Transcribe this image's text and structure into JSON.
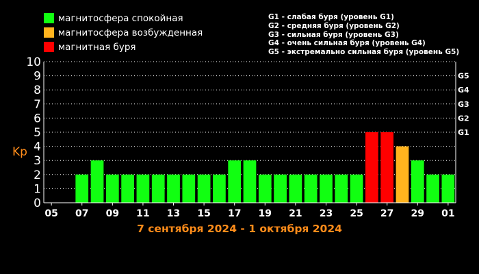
{
  "chart_data": {
    "type": "bar",
    "title": "",
    "subtitle": "7 сентября 2024 - 1 октября 2024",
    "ylabel": "Kp",
    "xlabel": "",
    "ylim": [
      0,
      10
    ],
    "yticks": [
      "0",
      "1",
      "2",
      "3",
      "4",
      "5",
      "6",
      "7",
      "8",
      "9",
      "10"
    ],
    "x_tick_labels": [
      "05",
      "07",
      "09",
      "11",
      "13",
      "15",
      "17",
      "19",
      "21",
      "23",
      "25",
      "27",
      "29",
      "01"
    ],
    "categories": [
      "07",
      "08",
      "09",
      "10",
      "11",
      "12",
      "13",
      "14",
      "15",
      "16",
      "17",
      "18",
      "19",
      "20",
      "21",
      "22",
      "23",
      "24",
      "25",
      "26",
      "27",
      "28",
      "29",
      "30",
      "01"
    ],
    "values": [
      2,
      3,
      2,
      2,
      2,
      2,
      2,
      2,
      2,
      2,
      3,
      3,
      2,
      2,
      2,
      2,
      2,
      2,
      2,
      5,
      5,
      4,
      3,
      2,
      2
    ],
    "bar_status": [
      "quiet",
      "quiet",
      "quiet",
      "quiet",
      "quiet",
      "quiet",
      "quiet",
      "quiet",
      "quiet",
      "quiet",
      "quiet",
      "quiet",
      "quiet",
      "quiet",
      "quiet",
      "quiet",
      "quiet",
      "quiet",
      "quiet",
      "storm",
      "storm",
      "active",
      "quiet",
      "quiet",
      "quiet"
    ],
    "grid": true,
    "legend_position": "top-left",
    "legend": [
      {
        "key": "quiet",
        "label": "магнитосфера спокойная",
        "color": "#11ff11"
      },
      {
        "key": "active",
        "label": "магнитосфера возбужденная",
        "color": "#ffb41e"
      },
      {
        "key": "storm",
        "label": "магнитная буря",
        "color": "#ff0000"
      }
    ],
    "g_levels": [
      {
        "label": "G1",
        "kp": 5
      },
      {
        "label": "G2",
        "kp": 6
      },
      {
        "label": "G3",
        "kp": 7
      },
      {
        "label": "G4",
        "kp": 8
      },
      {
        "label": "G5",
        "kp": 9
      }
    ],
    "g_descriptions": [
      "G1 - слабая буря (уровень G1)",
      "G2 - средняя буря (уровень G2)",
      "G3 - сильная буря (уровень G3)",
      "G4 - очень сильная буря (уровень G4)",
      "G5 - экстремально сильная буря (уровень G5)"
    ]
  }
}
